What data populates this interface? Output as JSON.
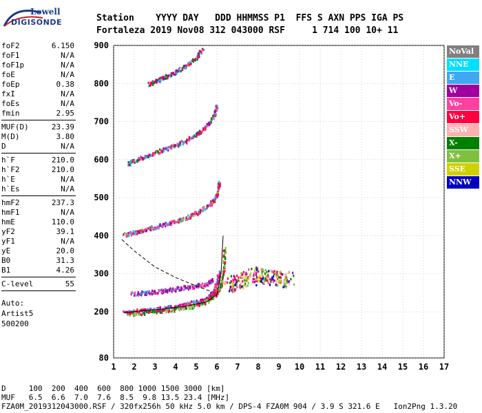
{
  "logo": {
    "line1": "Lowell",
    "line2": "DIGISONDE"
  },
  "header": {
    "labels": "Station    YYYY DAY   DDD HHMMSS P1  FFS S AXN PPS IGA PS",
    "values": "Fortaleza 2019 Nov08 312 043000 RSF     1 714 100 10+ 11"
  },
  "params": [
    {
      "name": "foF2",
      "value": "6.150"
    },
    {
      "name": "foF1",
      "value": "N/A"
    },
    {
      "name": "foF1p",
      "value": "N/A"
    },
    {
      "name": "foE",
      "value": "N/A"
    },
    {
      "name": "foEp",
      "value": "0.38"
    },
    {
      "name": "fxI",
      "value": "N/A"
    },
    {
      "name": "foEs",
      "value": "N/A"
    },
    {
      "name": "fmin",
      "value": "2.95"
    },
    {
      "name": "MUF(D)",
      "value": "23.39"
    },
    {
      "name": "M(D)",
      "value": "3.80"
    },
    {
      "name": "D",
      "value": "N/A"
    },
    {
      "name": "h`F",
      "value": "210.0"
    },
    {
      "name": "h`F2",
      "value": "210.0"
    },
    {
      "name": "h`E",
      "value": "N/A"
    },
    {
      "name": "h`Es",
      "value": "N/A"
    },
    {
      "name": "hmF2",
      "value": "237.3"
    },
    {
      "name": "hmF1",
      "value": "N/A"
    },
    {
      "name": "hmE",
      "value": "110.0"
    },
    {
      "name": "yF2",
      "value": "39.1"
    },
    {
      "name": "yF1",
      "value": "N/A"
    },
    {
      "name": "yE",
      "value": "20.0"
    },
    {
      "name": "B0",
      "value": "31.3"
    },
    {
      "name": "B1",
      "value": "4.26"
    },
    {
      "name": "C-level",
      "value": "55"
    }
  ],
  "notes": {
    "auto": "Auto:",
    "artist": "Artist5",
    "code": "500200"
  },
  "legend": [
    {
      "label": "NoVal",
      "color": "#808080"
    },
    {
      "label": "NNE",
      "color": "#00e0ff"
    },
    {
      "label": "E",
      "color": "#40a8f0"
    },
    {
      "label": "W",
      "color": "#a000a0"
    },
    {
      "label": "Vo-",
      "color": "#ff40a0"
    },
    {
      "label": "Vo+",
      "color": "#ff0040"
    },
    {
      "label": "SSW",
      "color": "#ffb0b0"
    },
    {
      "label": "X-",
      "color": "#008000"
    },
    {
      "label": "X+",
      "color": "#80c040"
    },
    {
      "label": "SSE",
      "color": "#d0d000"
    },
    {
      "label": "NNW",
      "color": "#0000c0"
    }
  ],
  "footer": {
    "line1": "D     100  200  400  600  800 1000 1500 3000 [km]",
    "line2": "MUF   6.5  6.6  7.0  7.6  8.5  9.8 13.5 23.4 [MHz]",
    "line3": "FZA0M_2019312043000.RSF / 320fx256h 50 kHz 5.0 km / DPS-4 FZA0M 904 / 3.9 S 321.6 E   Ion2Png 1.3.20"
  },
  "chart_data": {
    "type": "scatter",
    "x_ticks": [
      "1",
      "2",
      "3",
      "4",
      "5",
      "6",
      "7",
      "8",
      "9",
      "10",
      "11",
      "12",
      "13",
      "14",
      "15",
      "16",
      "17"
    ],
    "y_ticks": [
      "80",
      "200",
      "300",
      "400",
      "500",
      "600",
      "700",
      "800",
      "900"
    ],
    "xlim": [
      1,
      17
    ],
    "grid": true,
    "traces": [
      {
        "name": "O-trace",
        "points": [
          [
            1.5,
            200
          ],
          [
            2,
            203
          ],
          [
            2.5,
            205
          ],
          [
            3,
            208
          ],
          [
            3.5,
            212
          ],
          [
            4,
            216
          ],
          [
            4.5,
            221
          ],
          [
            5,
            228
          ],
          [
            5.5,
            238
          ],
          [
            5.8,
            252
          ],
          [
            6.0,
            278
          ],
          [
            6.1,
            310
          ]
        ]
      },
      {
        "name": "X-trace",
        "points": [
          [
            1.6,
            196
          ],
          [
            2.2,
            199
          ],
          [
            3,
            203
          ],
          [
            4,
            209
          ],
          [
            5,
            219
          ],
          [
            5.6,
            232
          ],
          [
            6.0,
            252
          ],
          [
            6.2,
            278
          ],
          [
            6.3,
            320
          ],
          [
            6.35,
            370
          ]
        ]
      },
      {
        "name": "second-hop",
        "points": [
          [
            1.5,
            405
          ],
          [
            2,
            410
          ],
          [
            2.5,
            418
          ],
          [
            3,
            425
          ],
          [
            3.5,
            432
          ],
          [
            4,
            440
          ],
          [
            4.5,
            450
          ],
          [
            5,
            462
          ],
          [
            5.5,
            478
          ],
          [
            5.8,
            492
          ],
          [
            6.0,
            515
          ],
          [
            6.1,
            545
          ]
        ]
      },
      {
        "name": "third-hop",
        "points": [
          [
            1.7,
            592
          ],
          [
            2,
            600
          ],
          [
            2.5,
            610
          ],
          [
            3,
            620
          ],
          [
            3.5,
            630
          ],
          [
            4,
            640
          ],
          [
            4.5,
            652
          ],
          [
            5,
            668
          ],
          [
            5.5,
            690
          ],
          [
            5.8,
            715
          ],
          [
            6.0,
            745
          ]
        ]
      },
      {
        "name": "fourth-hop",
        "points": [
          [
            2.7,
            800
          ],
          [
            3,
            808
          ],
          [
            3.5,
            820
          ],
          [
            4,
            832
          ],
          [
            4.5,
            850
          ],
          [
            5,
            870
          ],
          [
            5.3,
            895
          ]
        ]
      },
      {
        "name": "W-band",
        "points": [
          [
            1.8,
            250
          ],
          [
            2.5,
            252
          ],
          [
            3,
            255
          ],
          [
            3.5,
            258
          ],
          [
            4,
            262
          ],
          [
            4.5,
            266
          ],
          [
            5,
            270
          ],
          [
            5.5,
            276
          ],
          [
            5.8,
            285
          ]
        ]
      },
      {
        "name": "scatter-cluster",
        "points": [
          [
            6.5,
            270
          ],
          [
            7,
            280
          ],
          [
            7.5,
            290
          ],
          [
            8,
            300
          ],
          [
            8.5,
            295
          ],
          [
            9,
            290
          ],
          [
            9.5,
            285
          ]
        ]
      }
    ],
    "curves": [
      {
        "name": "MUF-dashed",
        "points": [
          [
            1.4,
            390
          ],
          [
            2,
            360
          ],
          [
            3,
            318
          ],
          [
            4,
            290
          ],
          [
            5,
            268
          ],
          [
            5.8,
            252
          ]
        ]
      },
      {
        "name": "model-solid",
        "points": [
          [
            1.5,
            198
          ],
          [
            2.5,
            203
          ],
          [
            3.5,
            208
          ],
          [
            4.5,
            215
          ],
          [
            5.5,
            226
          ],
          [
            6.0,
            245
          ],
          [
            6.2,
            300
          ],
          [
            6.3,
            400
          ]
        ]
      }
    ]
  }
}
